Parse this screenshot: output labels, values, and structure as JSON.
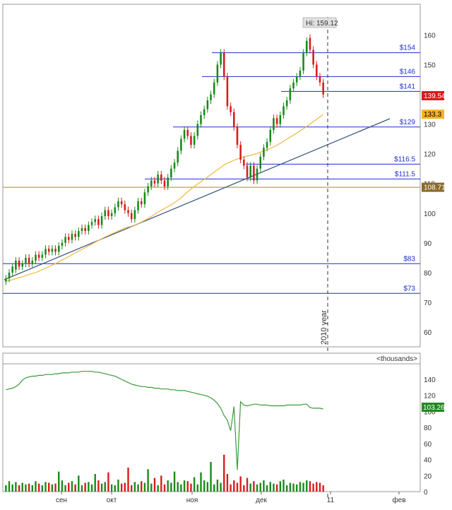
{
  "chart_data": {
    "type": "candlestick",
    "price_axis": {
      "ticks": [
        "160",
        "150",
        "140",
        "130",
        "120",
        "110",
        "100",
        "90",
        "80",
        "70",
        "60"
      ],
      "ylim": [
        55,
        167
      ]
    },
    "time_axis": {
      "ticks": [
        "сен",
        "окт",
        "ноя",
        "дек",
        "11",
        "фев"
      ]
    },
    "high_label": "Hi: 159.12",
    "price_levels": [
      {
        "label": "$154",
        "value": 154
      },
      {
        "label": "$146",
        "value": 146
      },
      {
        "label": "$141",
        "value": 141
      },
      {
        "label": "$129",
        "value": 129
      },
      {
        "label": "$116.5",
        "value": 116.5
      },
      {
        "label": "$111.5",
        "value": 111.5
      },
      {
        "label": "$83",
        "value": 83
      },
      {
        "label": "$73",
        "value": 73
      }
    ],
    "reference_line": 108.71,
    "badges": [
      {
        "label": "139.54",
        "value": 139.54,
        "color": "#d81c1c"
      },
      {
        "label": "133.3",
        "value": 133.3,
        "color": "#f5b324"
      },
      {
        "label": "108.71",
        "value": 108.71,
        "color": "#8a6a2a"
      }
    ],
    "year_marker": "2010 year",
    "candles": [
      [
        77,
        78
      ],
      [
        78,
        80
      ],
      [
        80,
        82
      ],
      [
        81,
        84
      ],
      [
        84,
        82
      ],
      [
        82,
        83
      ],
      [
        83,
        85
      ],
      [
        85,
        83
      ],
      [
        83,
        84
      ],
      [
        84,
        86
      ],
      [
        86,
        85
      ],
      [
        85,
        86
      ],
      [
        86,
        88
      ],
      [
        88,
        87
      ],
      [
        87,
        88
      ],
      [
        88,
        87
      ],
      [
        87,
        89
      ],
      [
        89,
        90
      ],
      [
        90,
        92
      ],
      [
        92,
        91
      ],
      [
        91,
        93
      ],
      [
        93,
        92
      ],
      [
        92,
        94
      ],
      [
        94,
        95
      ],
      [
        95,
        94
      ],
      [
        94,
        96
      ],
      [
        96,
        97
      ],
      [
        97,
        98
      ],
      [
        98,
        96
      ],
      [
        96,
        99
      ],
      [
        99,
        101
      ],
      [
        101,
        99
      ],
      [
        99,
        100
      ],
      [
        100,
        102
      ],
      [
        102,
        104
      ],
      [
        104,
        103
      ],
      [
        103,
        101
      ],
      [
        101,
        100
      ],
      [
        100,
        98
      ],
      [
        98,
        101
      ],
      [
        101,
        104
      ],
      [
        104,
        103
      ],
      [
        103,
        107
      ],
      [
        107,
        109
      ],
      [
        109,
        111
      ],
      [
        111,
        110
      ],
      [
        110,
        113
      ],
      [
        113,
        111
      ],
      [
        111,
        109
      ],
      [
        109,
        112
      ],
      [
        112,
        115
      ],
      [
        115,
        117
      ],
      [
        117,
        121
      ],
      [
        121,
        125
      ],
      [
        125,
        128
      ],
      [
        128,
        126
      ],
      [
        126,
        123
      ],
      [
        123,
        126
      ],
      [
        126,
        130
      ],
      [
        130,
        133
      ],
      [
        133,
        135
      ],
      [
        135,
        138
      ],
      [
        138,
        140
      ],
      [
        140,
        144
      ],
      [
        144,
        150
      ],
      [
        150,
        154
      ],
      [
        154,
        146
      ],
      [
        146,
        136
      ],
      [
        136,
        134
      ],
      [
        134,
        129
      ],
      [
        129,
        123
      ],
      [
        123,
        118
      ],
      [
        118,
        116
      ],
      [
        116,
        112
      ],
      [
        112,
        116
      ],
      [
        116,
        111
      ],
      [
        111,
        115
      ],
      [
        115,
        119
      ],
      [
        119,
        122
      ],
      [
        122,
        124
      ],
      [
        124,
        128
      ],
      [
        128,
        132
      ],
      [
        132,
        130
      ],
      [
        130,
        133
      ],
      [
        133,
        136
      ],
      [
        136,
        138
      ],
      [
        138,
        142
      ],
      [
        142,
        144
      ],
      [
        144,
        146
      ],
      [
        146,
        148
      ],
      [
        148,
        154
      ],
      [
        154,
        158
      ],
      [
        159,
        155
      ],
      [
        155,
        150
      ],
      [
        150,
        146
      ],
      [
        146,
        144
      ],
      [
        144,
        140
      ]
    ],
    "ma_series": [
      77,
      77.3,
      77.6,
      78,
      78.3,
      78.6,
      79,
      79.3,
      79.7,
      80,
      80.5,
      81,
      81.5,
      82,
      82.5,
      83,
      83.6,
      84.2,
      84.8,
      85.4,
      86,
      86.6,
      87.2,
      87.8,
      88.4,
      89,
      89.6,
      90.2,
      90.8,
      91.4,
      92,
      92.5,
      93,
      93.5,
      94,
      94.5,
      95,
      95.3,
      95.6,
      96,
      96.5,
      97,
      97.6,
      98.2,
      98.9,
      99.6,
      100.3,
      101,
      101.6,
      102.2,
      102.8,
      103.5,
      104.3,
      105.2,
      106.2,
      107.2,
      108.1,
      109,
      109.8,
      110.6,
      111.4,
      112.2,
      113,
      113.8,
      114.6,
      115.4,
      116.2,
      116.8,
      117.3,
      117.8,
      118.2,
      118.6,
      118.9,
      119.2,
      119.5,
      119.8,
      120.1,
      120.5,
      120.9,
      121.3,
      121.8,
      122.3,
      122.9,
      123.5,
      124.2,
      124.9,
      125.6,
      126.3,
      127,
      127.7,
      128.4,
      129.2,
      130,
      130.8,
      131.6,
      132.4,
      133.3
    ],
    "indicator": {
      "unit_label": "<thousands>",
      "ticks": [
        "140",
        "120",
        "100",
        "80",
        "60",
        "40",
        "20",
        "0"
      ],
      "ylim": [
        0,
        155
      ],
      "value_label": "103.26",
      "line": [
        127,
        128,
        129,
        131,
        134,
        139,
        142,
        143,
        144,
        144,
        145,
        145,
        146,
        146,
        146,
        147,
        147,
        148,
        148,
        148,
        149,
        149,
        149,
        150,
        150,
        150,
        150,
        149,
        149,
        148,
        147,
        146,
        145,
        144,
        142,
        140,
        138,
        136,
        134,
        133,
        132,
        131,
        131,
        130,
        130,
        129,
        129,
        128,
        128,
        128,
        127,
        127,
        126,
        126,
        126,
        125,
        124,
        123,
        122,
        121,
        120,
        119,
        117,
        114,
        110,
        104,
        95,
        89,
        76,
        106,
        27,
        112,
        108,
        107,
        108,
        109,
        109,
        108,
        108,
        108,
        107,
        107,
        107,
        107,
        107,
        108,
        108,
        108,
        108,
        108,
        109,
        109,
        105,
        104,
        104,
        104,
        103
      ],
      "volume": [
        8,
        13,
        9,
        12,
        8,
        11,
        9,
        10,
        8,
        13,
        10,
        8,
        12,
        11,
        9,
        10,
        25,
        14,
        8,
        11,
        13,
        9,
        20,
        8,
        11,
        12,
        9,
        22,
        14,
        10,
        12,
        24,
        9,
        8,
        15,
        10,
        11,
        30,
        8,
        12,
        9,
        13,
        11,
        28,
        10,
        17,
        8,
        20,
        9,
        14,
        11,
        25,
        12,
        9,
        14,
        13,
        10,
        18,
        9,
        24,
        14,
        12,
        37,
        9,
        15,
        11,
        46,
        22,
        9,
        14,
        11,
        19,
        8,
        17,
        10,
        13,
        9,
        11,
        14,
        8,
        12,
        10,
        9,
        13,
        15,
        8,
        11,
        10,
        9,
        12,
        11,
        14,
        13,
        10,
        12,
        11,
        8
      ]
    }
  }
}
